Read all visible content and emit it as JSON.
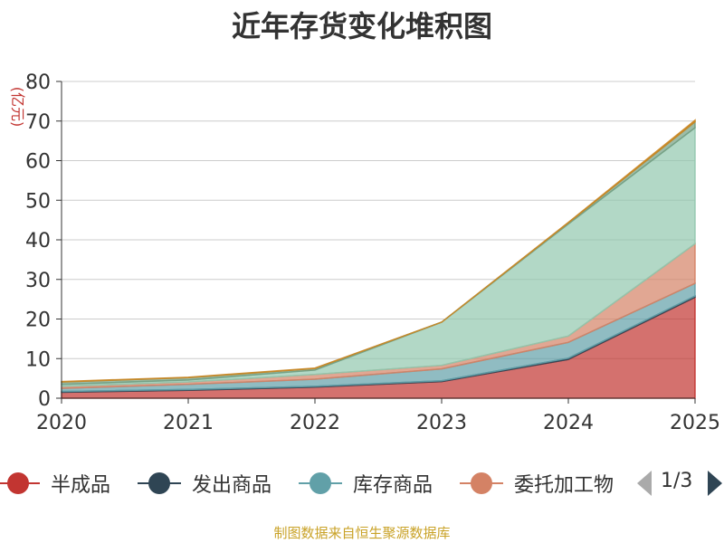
{
  "chart_data": {
    "type": "area",
    "stacked": true,
    "title": "近年存货变化堆积图",
    "ylabel": "(亿元)",
    "xlabel": "",
    "categories": [
      "2020",
      "2021",
      "2022",
      "2023",
      "2024",
      "2025"
    ],
    "ylim": [
      0,
      80
    ],
    "yticks": [
      0,
      10,
      20,
      30,
      40,
      50,
      60,
      70,
      80
    ],
    "grid": true,
    "series": [
      {
        "name": "半成品",
        "color": "#c23531",
        "values": [
          1.5,
          2.0,
          2.8,
          4.2,
          9.8,
          25.5
        ]
      },
      {
        "name": "发出商品",
        "color": "#2f4554",
        "values": [
          0.2,
          0.2,
          0.2,
          0.2,
          0.3,
          0.3
        ]
      },
      {
        "name": "库存商品",
        "color": "#61a0a8",
        "values": [
          0.8,
          1.3,
          1.8,
          3.0,
          4.0,
          3.2
        ]
      },
      {
        "name": "委托加工物",
        "color": "#d48265",
        "values": [
          0.5,
          0.6,
          1.2,
          0.9,
          1.6,
          10.0
        ]
      },
      {
        "name": "",
        "color": "#91c7ae",
        "values": [
          0.5,
          0.5,
          1.1,
          10.9,
          28.3,
          29.3
        ]
      },
      {
        "name": "",
        "color": "#749f83",
        "values": [
          0.6,
          0.6,
          0.4,
          0.0,
          0.3,
          1.5
        ]
      },
      {
        "name": "",
        "color": "#ca8622",
        "values": [
          0.1,
          0.1,
          0.1,
          0.0,
          0.1,
          0.4
        ]
      }
    ],
    "legend_position": "bottom",
    "legend_page": "1/3"
  },
  "source_text": "制图数据来自恒生聚源数据库"
}
